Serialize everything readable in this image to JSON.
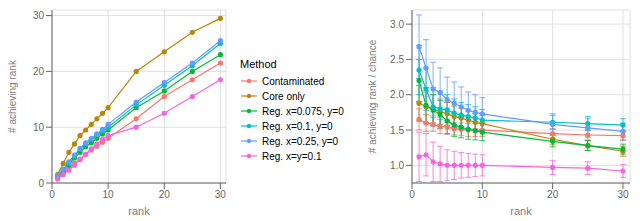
{
  "chart_data": [
    {
      "type": "line",
      "x_label": "rank",
      "y_label": "# achieving rank",
      "xlim": [
        0,
        31
      ],
      "ylim": [
        0,
        31
      ],
      "xticks": [
        0,
        10,
        20,
        30
      ],
      "yticks": [
        0,
        10,
        20,
        30
      ],
      "grid": true,
      "marker": "circle",
      "legend": "right",
      "legend_title": "Method",
      "x": [
        1,
        2,
        3,
        4,
        5,
        6,
        7,
        8,
        9,
        10,
        15,
        20,
        25,
        30
      ],
      "series": [
        {
          "name": "Contaminated",
          "color": "#F8766D",
          "values": [
            1.0,
            1.8,
            2.7,
            3.5,
            4.3,
            5.1,
            5.9,
            6.6,
            7.3,
            8.0,
            11.5,
            15.5,
            18.5,
            21.5
          ]
        },
        {
          "name": "Core only",
          "color": "#B8860B",
          "values": [
            1.5,
            3.5,
            5.5,
            7.0,
            8.5,
            9.5,
            10.5,
            11.5,
            12.5,
            13.5,
            20.0,
            23.5,
            27.0,
            29.5
          ]
        },
        {
          "name": "Reg. x=0.075, y=0",
          "color": "#00BA38",
          "values": [
            1.0,
            2.0,
            3.2,
            4.5,
            5.5,
            6.5,
            7.2,
            8.0,
            8.8,
            9.5,
            13.5,
            16.5,
            20.0,
            23.0
          ]
        },
        {
          "name": "Reg. x=0.1, y=0",
          "color": "#00BFC4",
          "values": [
            1.2,
            2.3,
            3.5,
            4.8,
            6.0,
            7.0,
            7.8,
            8.6,
            9.3,
            10.0,
            14.0,
            17.5,
            21.0,
            25.0
          ]
        },
        {
          "name": "Reg. x=0.25, y=0",
          "color": "#619CFF",
          "values": [
            1.3,
            2.5,
            3.8,
            5.0,
            6.2,
            7.2,
            8.0,
            8.8,
            9.6,
            10.5,
            14.5,
            18.0,
            21.5,
            25.5
          ]
        },
        {
          "name": "Reg. x=y=0.1",
          "color": "#F564E3",
          "values": [
            0.7,
            1.5,
            2.3,
            3.2,
            4.2,
            5.2,
            6.1,
            7.0,
            7.8,
            8.5,
            10.0,
            12.5,
            15.5,
            18.5
          ]
        }
      ]
    },
    {
      "type": "line",
      "x_label": "rank",
      "y_label": "# achieving rank / chance",
      "xlim": [
        0,
        31
      ],
      "ylim": [
        0.75,
        3.2
      ],
      "xticks": [
        0,
        10,
        20,
        30
      ],
      "yticks": [
        {
          "value": 1.0,
          "label": "1.0"
        },
        1.5,
        {
          "value": 2.0,
          "label": "2.0"
        },
        2.5,
        {
          "value": 3.0,
          "label": "3.0"
        }
      ],
      "grid": true,
      "marker": "circle",
      "x": [
        1,
        2,
        3,
        4,
        5,
        6,
        7,
        8,
        9,
        10,
        20,
        25,
        30
      ],
      "series": [
        {
          "name": "Contaminated",
          "color": "#F8766D",
          "values": [
            1.65,
            1.6,
            1.58,
            1.55,
            1.54,
            1.52,
            1.51,
            1.5,
            1.5,
            1.5,
            1.45,
            1.43,
            1.42
          ],
          "yerr": [
            0.15,
            0.12,
            0.1,
            0.1,
            0.1,
            0.09,
            0.09,
            0.09,
            0.09,
            0.09,
            0.07,
            0.07,
            0.07
          ]
        },
        {
          "name": "Core only",
          "color": "#B8860B",
          "values": [
            1.88,
            1.83,
            1.8,
            1.76,
            1.73,
            1.69,
            1.67,
            1.64,
            1.61,
            1.59,
            1.37,
            1.28,
            1.2
          ],
          "yerr": [
            0.25,
            0.22,
            0.2,
            0.18,
            0.16,
            0.15,
            0.14,
            0.13,
            0.12,
            0.12,
            0.08,
            0.07,
            0.07
          ]
        },
        {
          "name": "Reg. x=0.075, y=0",
          "color": "#00BA38",
          "values": [
            2.2,
            1.85,
            1.78,
            1.72,
            1.63,
            1.57,
            1.54,
            1.51,
            1.49,
            1.47,
            1.34,
            1.28,
            1.23
          ],
          "yerr": [
            0.3,
            0.25,
            0.22,
            0.2,
            0.18,
            0.16,
            0.15,
            0.14,
            0.13,
            0.12,
            0.08,
            0.07,
            0.07
          ]
        },
        {
          "name": "Reg. x=0.1, y=0",
          "color": "#00BFC4",
          "values": [
            2.35,
            2.08,
            1.83,
            1.8,
            1.78,
            1.74,
            1.71,
            1.69,
            1.67,
            1.64,
            1.61,
            1.59,
            1.57
          ],
          "yerr": [
            0.35,
            0.3,
            0.27,
            0.25,
            0.22,
            0.2,
            0.18,
            0.17,
            0.16,
            0.15,
            0.1,
            0.1,
            0.09
          ]
        },
        {
          "name": "Reg. x=0.25, y=0",
          "color": "#619CFF",
          "values": [
            2.68,
            2.38,
            2.08,
            2.03,
            1.93,
            1.88,
            1.83,
            1.78,
            1.75,
            1.73,
            1.58,
            1.53,
            1.48
          ],
          "yerr": [
            0.45,
            0.4,
            0.38,
            0.35,
            0.32,
            0.3,
            0.28,
            0.26,
            0.25,
            0.23,
            0.15,
            0.13,
            0.12
          ]
        },
        {
          "name": "Reg. x=y=0.1",
          "color": "#F564E3",
          "values": [
            1.12,
            1.15,
            1.05,
            1.02,
            1.0,
            1.0,
            1.0,
            1.0,
            1.0,
            1.0,
            0.97,
            0.96,
            0.92
          ],
          "yerr": [
            0.35,
            0.3,
            0.28,
            0.25,
            0.22,
            0.2,
            0.18,
            0.17,
            0.16,
            0.15,
            0.1,
            0.09,
            0.09
          ]
        }
      ]
    }
  ]
}
